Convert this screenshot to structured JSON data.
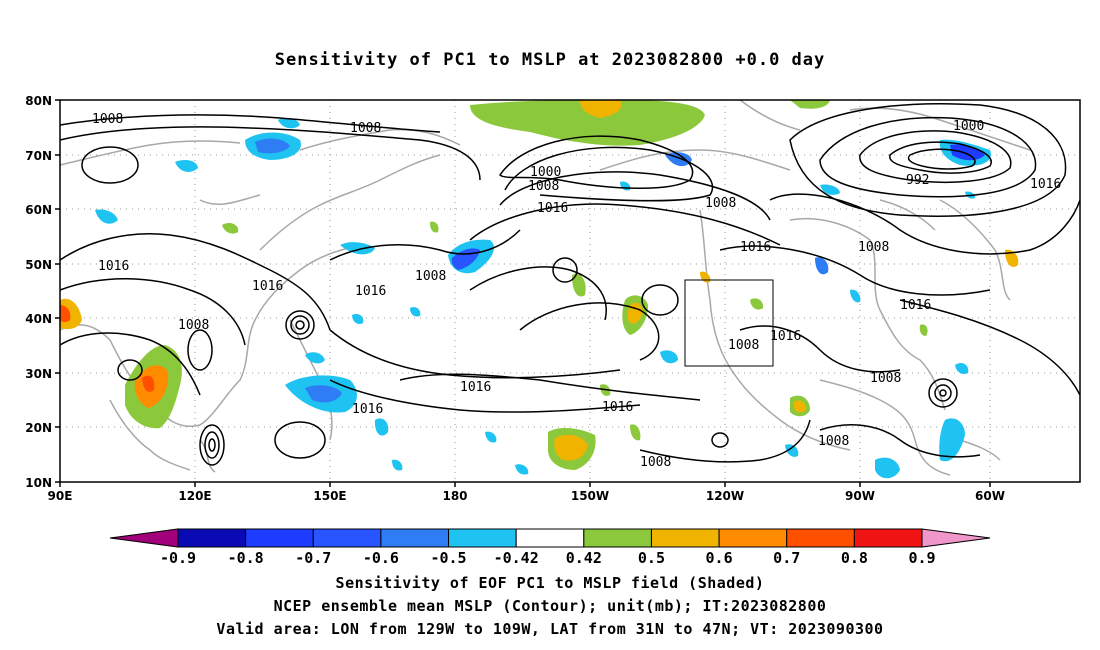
{
  "title": "Sensitivity of PC1 to MSLP at 2023082800 +0.0 day",
  "map": {
    "lat_ticks": [
      "80N",
      "70N",
      "60N",
      "50N",
      "40N",
      "30N",
      "20N",
      "10N"
    ],
    "lon_ticks": [
      "90E",
      "120E",
      "150E",
      "180",
      "150W",
      "120W",
      "90W",
      "60W"
    ],
    "contour_labels": [
      "1008",
      "1008",
      "1000",
      "1008",
      "1016",
      "1008",
      "1000",
      "992",
      "1016",
      "1016",
      "1008",
      "1016",
      "1008",
      "1016",
      "1016",
      "1008",
      "1016",
      "1016",
      "1008",
      "1016",
      "1008",
      "1008",
      "1008"
    ],
    "domain_box": {
      "lon_min": "129W",
      "lon_max": "109W",
      "lat_min": "31N",
      "lat_max": "47N"
    }
  },
  "colorbar": {
    "labels": [
      "-0.9",
      "-0.8",
      "-0.7",
      "-0.6",
      "-0.5",
      "-0.42",
      "0.42",
      "0.5",
      "0.6",
      "0.7",
      "0.8",
      "0.9"
    ],
    "colors": [
      "#a1007a",
      "#0a0ab4",
      "#1e3cff",
      "#2855ff",
      "#2f7df5",
      "#1fc3f2",
      "#ffffff",
      "#8cc83c",
      "#f0b400",
      "#ff8c00",
      "#ff5000",
      "#f01414",
      "#f096c8"
    ]
  },
  "captions": [
    "Sensitivity of EOF PC1 to MSLP field (Shaded)",
    "NCEP ensemble mean MSLP (Contour); unit(mb); IT:2023082800",
    "Valid area: LON from 129W to 109W, LAT from 31N to 47N; VT: 2023090300"
  ]
}
